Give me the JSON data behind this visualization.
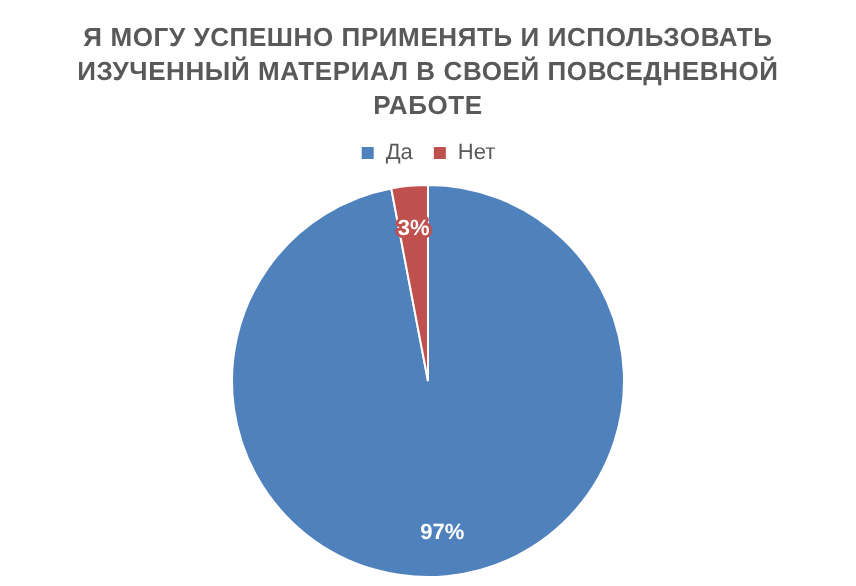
{
  "chart_data": {
    "type": "pie",
    "title": "Я МОГУ УСПЕШНО ПРИМЕНЯТЬ И ИСПОЛЬЗОВАТЬ ИЗУЧЕННЫЙ МАТЕРИАЛ В СВОЕЙ ПОВСЕДНЕВНОЙ РАБОТЕ",
    "categories": [
      "Да",
      "Нет"
    ],
    "values": [
      97,
      3
    ],
    "colors": [
      "#4f81bd",
      "#c0504d"
    ],
    "value_labels": [
      "97%",
      "3%"
    ],
    "legend": "top"
  }
}
